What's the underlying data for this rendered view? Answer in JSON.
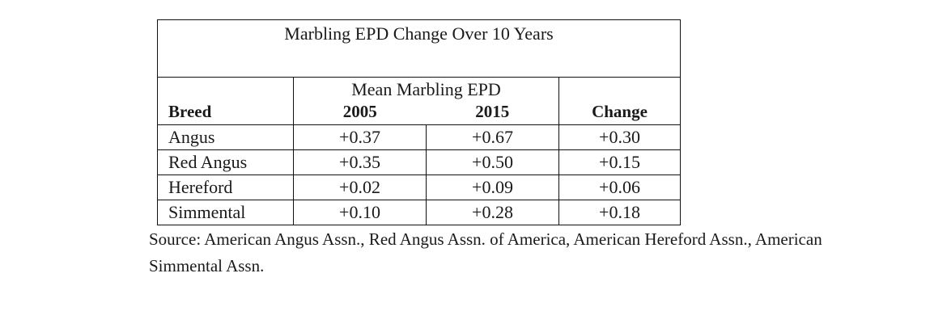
{
  "table": {
    "title": "Marbling EPD Change Over 10 Years",
    "group_header": "Mean Marbling EPD",
    "columns": [
      "Breed",
      "2005",
      "2015",
      "Change"
    ],
    "rows": [
      {
        "breed": "Angus",
        "y2005": "+0.37",
        "y2015": "+0.67",
        "change": "+0.30"
      },
      {
        "breed": "Red Angus",
        "y2005": "+0.35",
        "y2015": "+0.50",
        "change": "+0.15"
      },
      {
        "breed": "Hereford",
        "y2005": "+0.02",
        "y2015": "+0.09",
        "change": "+0.06"
      },
      {
        "breed": "Simmental",
        "y2005": "+0.10",
        "y2015": "+0.28",
        "change": "+0.18"
      }
    ]
  },
  "source": "Source: American Angus Assn., Red Angus Assn. of America, American Hereford Assn., American Simmental Assn."
}
